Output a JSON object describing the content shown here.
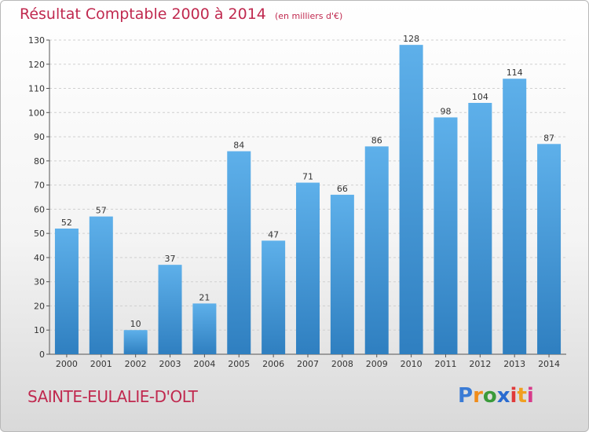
{
  "title": "Résultat Comptable 2000 à 2014",
  "subtitle": "(en milliers d'€)",
  "location": "SAINTE-EULALIE-D'OLT",
  "brand": {
    "letters": [
      "P",
      "r",
      "o",
      "x",
      "i",
      "t",
      "i"
    ],
    "colors": [
      "#3a7bd5",
      "#f08c1a",
      "#3a9a3a",
      "#2a6bd0",
      "#e03a3a",
      "#f0a020",
      "#d83a8a"
    ]
  },
  "colors": {
    "bar_top": "#5eb0ea",
    "bar_bottom": "#2f7fc0",
    "title": "#c0294f"
  },
  "chart_data": {
    "type": "bar",
    "categories": [
      "2000",
      "2001",
      "2002",
      "2003",
      "2004",
      "2005",
      "2006",
      "2007",
      "2008",
      "2009",
      "2010",
      "2011",
      "2012",
      "2013",
      "2014"
    ],
    "values": [
      52,
      57,
      10,
      37,
      21,
      84,
      47,
      71,
      66,
      86,
      128,
      98,
      104,
      114,
      87
    ],
    "ylim": [
      0,
      130
    ],
    "yticks": [
      0,
      10,
      20,
      30,
      40,
      50,
      60,
      70,
      80,
      90,
      100,
      110,
      120,
      130
    ],
    "grid": true
  }
}
